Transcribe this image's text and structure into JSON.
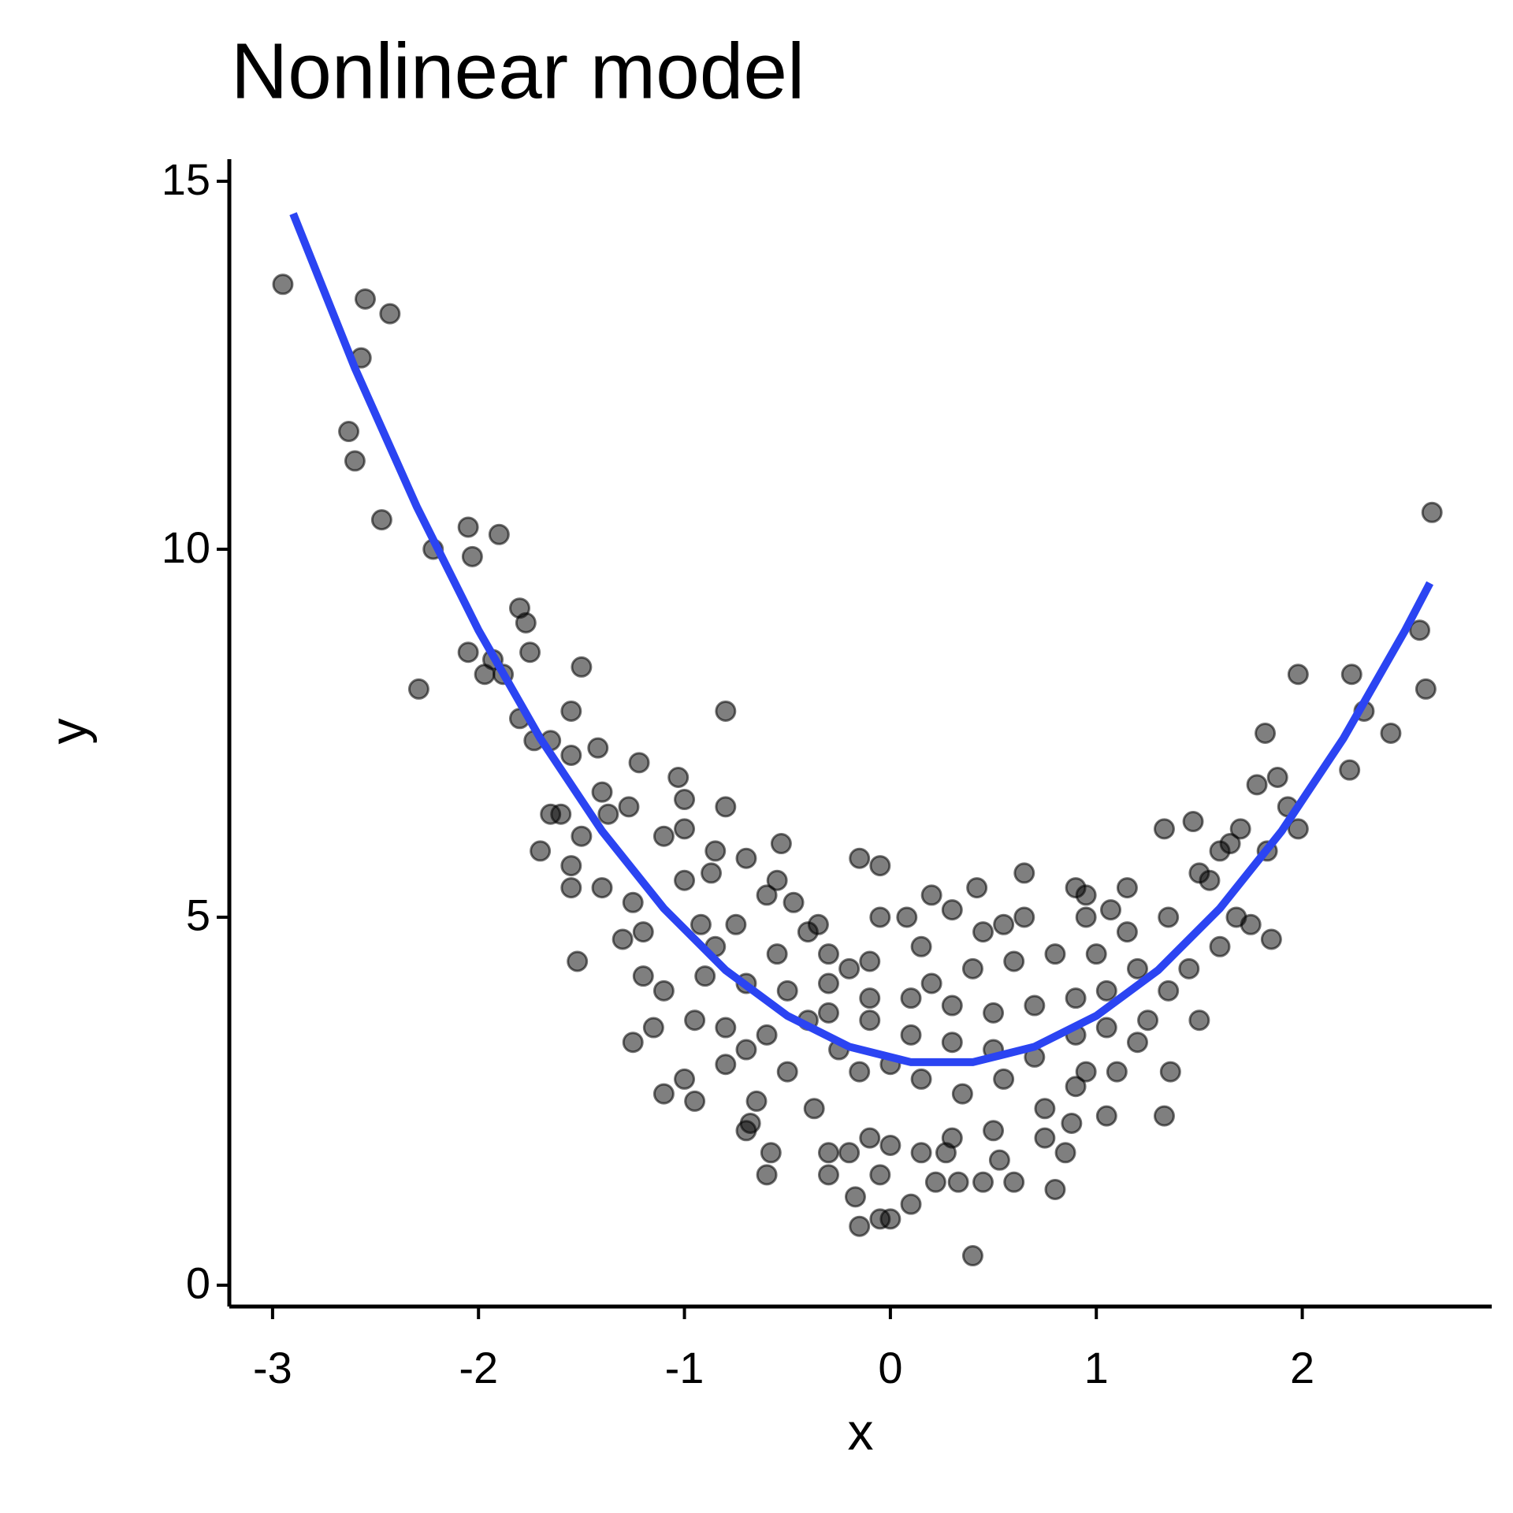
{
  "chart_data": {
    "type": "scatter",
    "title": "Nonlinear model",
    "xlabel": "x",
    "ylabel": "y",
    "xlim": [
      -3.21,
      2.92
    ],
    "ylim": [
      -0.29,
      15.3
    ],
    "xticks": [
      -3,
      -2,
      -1,
      0,
      1,
      2
    ],
    "yticks": [
      0,
      5,
      10,
      15
    ],
    "grid": false,
    "series": [
      {
        "type": "scatter",
        "color": "#000000",
        "x": [
          -2.95,
          -2.55,
          -2.43,
          -2.57,
          -2.63,
          -2.6,
          -2.47,
          -2.22,
          -2.05,
          -1.9,
          -2.03,
          -1.8,
          -1.77,
          -2.05,
          -1.97,
          -1.93,
          -1.88,
          -1.75,
          -2.29,
          -1.5,
          -1.55,
          -1.8,
          -1.73,
          -1.65,
          -1.55,
          -1.42,
          -0.8,
          -1.22,
          -1.03,
          -1.0,
          -1.4,
          -1.65,
          -1.6,
          -1.37,
          -1.27,
          -0.8,
          -1.5,
          -1.1,
          -1.0,
          -1.7,
          -1.55,
          -1.55,
          -1.4,
          -0.85,
          -0.7,
          -0.53,
          -0.87,
          -1.0,
          -0.55,
          -0.6,
          -0.47,
          -1.25,
          -1.3,
          -1.2,
          -1.52,
          -0.92,
          -0.75,
          -0.4,
          -0.35,
          -0.15,
          -0.05,
          -0.05,
          0.08,
          0.2,
          0.3,
          0.42,
          0.65,
          0.65,
          0.9,
          0.95,
          1.07,
          1.15,
          1.15,
          0.95,
          1.35,
          1.33,
          1.47,
          1.5,
          1.55,
          1.6,
          1.65,
          1.7,
          1.78,
          1.83,
          1.88,
          1.93,
          1.98,
          1.98,
          2.24,
          2.3,
          2.43,
          2.23,
          2.57,
          2.6,
          2.63,
          1.82,
          1.75,
          1.85,
          1.6,
          1.68,
          1.45,
          1.5,
          1.35,
          1.25,
          1.33,
          1.36,
          1.05,
          1.1,
          0.95,
          0.88,
          0.85,
          0.8,
          0.75,
          0.6,
          0.53,
          0.45,
          0.4,
          0.33,
          0.22,
          0.27,
          0.1,
          0.0,
          -0.05,
          -0.15,
          -0.17,
          -0.05,
          -0.3,
          -0.3,
          -0.2,
          -0.1,
          0.0,
          0.15,
          0.3,
          0.5,
          -0.6,
          -0.58,
          -0.7,
          -0.68,
          -0.37,
          -0.65,
          -0.95,
          -1.1,
          -1.0,
          -1.25,
          -0.8,
          -0.7,
          -0.5,
          -0.25,
          -0.15,
          0.0,
          0.15,
          0.35,
          0.55,
          0.75,
          0.9,
          -1.15,
          -0.95,
          -0.8,
          -0.6,
          -0.4,
          -0.3,
          -0.1,
          0.1,
          0.3,
          0.5,
          0.7,
          0.9,
          1.05,
          1.2,
          -1.1,
          -0.9,
          -0.7,
          -0.5,
          -0.3,
          -0.1,
          0.1,
          0.3,
          0.5,
          0.7,
          0.9,
          1.05,
          1.2,
          -1.2,
          -0.85,
          -0.55,
          -0.3,
          -0.1,
          0.15,
          0.4,
          0.6,
          0.8,
          1.0,
          -0.2,
          0.2,
          0.45,
          0.55
        ],
        "values": [
          13.6,
          13.4,
          13.2,
          12.6,
          11.6,
          11.2,
          10.4,
          10.0,
          10.3,
          10.2,
          9.9,
          9.2,
          9.0,
          8.6,
          8.3,
          8.5,
          8.3,
          8.6,
          8.1,
          8.4,
          7.8,
          7.7,
          7.4,
          7.4,
          7.2,
          7.3,
          7.8,
          7.1,
          6.9,
          6.6,
          6.7,
          6.4,
          6.4,
          6.4,
          6.5,
          6.5,
          6.1,
          6.1,
          6.2,
          5.9,
          5.7,
          5.4,
          5.4,
          5.9,
          5.8,
          6.0,
          5.6,
          5.5,
          5.5,
          5.3,
          5.2,
          5.2,
          4.7,
          4.8,
          4.4,
          4.9,
          4.9,
          4.8,
          4.9,
          5.8,
          5.7,
          5.0,
          5.0,
          5.3,
          5.1,
          5.4,
          5.6,
          5.0,
          5.4,
          5.3,
          5.1,
          5.4,
          4.8,
          5.0,
          5.0,
          6.2,
          6.3,
          5.6,
          5.5,
          5.9,
          6.0,
          6.2,
          6.8,
          5.9,
          6.9,
          6.5,
          6.2,
          8.3,
          8.3,
          7.8,
          7.5,
          7.0,
          8.9,
          8.1,
          10.5,
          7.5,
          4.9,
          4.7,
          4.6,
          5.0,
          4.3,
          3.6,
          4.0,
          3.6,
          2.3,
          2.9,
          2.3,
          2.9,
          2.9,
          2.2,
          1.8,
          1.3,
          2.0,
          1.4,
          1.7,
          1.4,
          0.4,
          1.4,
          1.4,
          1.8,
          1.1,
          0.9,
          0.9,
          0.8,
          1.2,
          1.5,
          1.5,
          1.8,
          1.8,
          2.0,
          1.9,
          1.8,
          2.0,
          2.1,
          1.5,
          1.8,
          2.1,
          2.2,
          2.4,
          2.5,
          2.5,
          2.6,
          2.8,
          3.3,
          3.0,
          3.2,
          2.9,
          3.2,
          2.9,
          3.0,
          2.8,
          2.6,
          2.8,
          2.4,
          2.7,
          3.5,
          3.6,
          3.5,
          3.4,
          3.6,
          3.7,
          3.6,
          3.4,
          3.3,
          3.2,
          3.1,
          3.4,
          3.5,
          3.3,
          4.0,
          4.2,
          4.1,
          4.0,
          4.1,
          3.9,
          3.9,
          3.8,
          3.7,
          3.8,
          3.9,
          4.0,
          4.3,
          4.2,
          4.6,
          4.5,
          4.5,
          4.4,
          4.6,
          4.3,
          4.4,
          4.5,
          4.5,
          4.3,
          4.1,
          4.8,
          4.9
        ]
      },
      {
        "type": "line",
        "color": "#2b44f2",
        "x": [
          -2.9,
          -2.6,
          -2.3,
          -2.0,
          -1.7,
          -1.4,
          -1.1,
          -0.8,
          -0.5,
          -0.2,
          0.1,
          0.4,
          0.7,
          1.0,
          1.3,
          1.6,
          1.9,
          2.2,
          2.5,
          2.62
        ],
        "values": [
          14.56,
          12.46,
          10.58,
          8.9,
          7.43,
          6.17,
          5.12,
          4.28,
          3.66,
          3.24,
          3.03,
          3.03,
          3.24,
          3.66,
          4.28,
          5.12,
          6.17,
          7.43,
          8.9,
          9.54
        ]
      }
    ]
  }
}
